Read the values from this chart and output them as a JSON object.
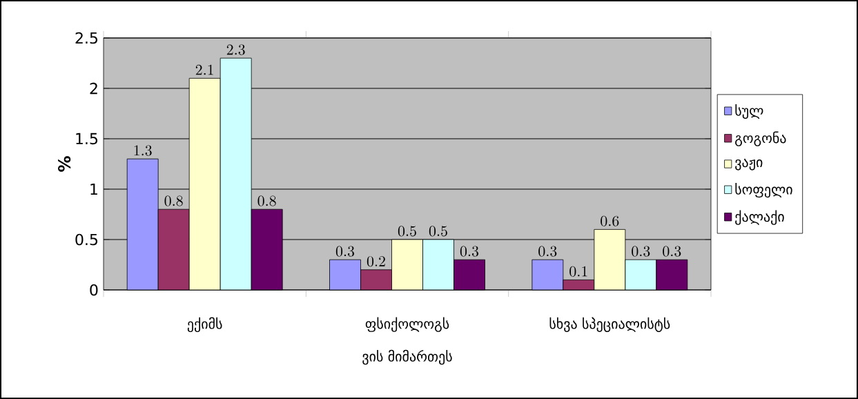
{
  "chart_data": {
    "type": "bar",
    "ylabel": "%",
    "xlabel": "ვის მიმართეს",
    "categories": [
      "ექიმს",
      "ფსიქოლოგს",
      "სხვა სპეციალისტს"
    ],
    "series": [
      {
        "name": "სულ",
        "color": "#9999ff",
        "values": [
          1.3,
          0.3,
          0.3
        ]
      },
      {
        "name": "გოგონა",
        "color": "#993366",
        "values": [
          0.8,
          0.2,
          0.1
        ]
      },
      {
        "name": "ვაჟი",
        "color": "#ffffcc",
        "values": [
          2.1,
          0.5,
          0.6
        ]
      },
      {
        "name": "სოფელი",
        "color": "#ccffff",
        "values": [
          2.3,
          0.5,
          0.3
        ]
      },
      {
        "name": "ქალაქი",
        "color": "#660066",
        "values": [
          0.8,
          0.3,
          0.3
        ]
      }
    ],
    "ylim": [
      0,
      2.5
    ],
    "yticks": [
      0,
      0.5,
      1,
      1.5,
      2,
      2.5
    ],
    "grid": "y",
    "legend": "right",
    "data_labels": true
  }
}
